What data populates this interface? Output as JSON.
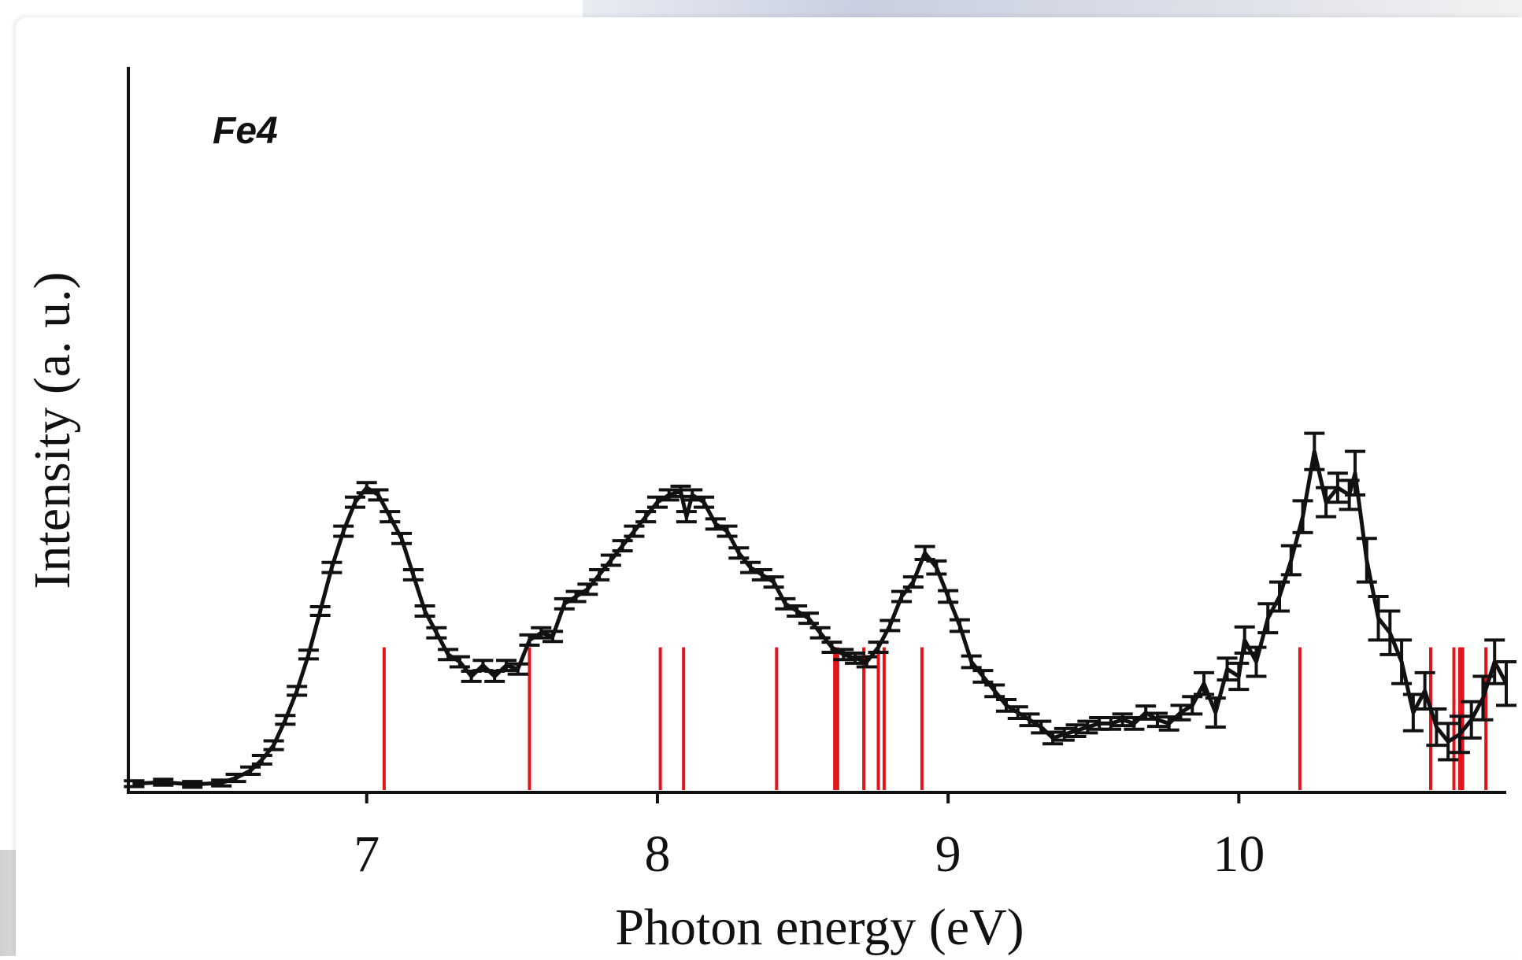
{
  "chart_data": {
    "type": "line",
    "title": "",
    "panel_label": "Fe4",
    "xlabel": "Photon energy (eV)",
    "ylabel": "Intensity (a. u.)",
    "xlim": [
      6.18,
      10.92
    ],
    "ylim": [
      0,
      1.0
    ],
    "x_ticks": [
      7,
      8,
      9,
      10
    ],
    "x_tick_labels": [
      "7",
      "8",
      "9",
      "10"
    ],
    "grid": false,
    "legend": "none",
    "colors": {
      "spectrum": "#111111",
      "transitions": "#e3131b"
    },
    "series": [
      {
        "values": [
          [
            6.2,
            0.012,
            0.004
          ],
          [
            6.3,
            0.014,
            0.004
          ],
          [
            6.4,
            0.011,
            0.004
          ],
          [
            6.5,
            0.013,
            0.004
          ],
          [
            6.55,
            0.02,
            0.005
          ],
          [
            6.6,
            0.03,
            0.005
          ],
          [
            6.64,
            0.045,
            0.006
          ],
          [
            6.68,
            0.065,
            0.006
          ],
          [
            6.72,
            0.1,
            0.006
          ],
          [
            6.76,
            0.14,
            0.006
          ],
          [
            6.8,
            0.19,
            0.006
          ],
          [
            6.84,
            0.25,
            0.006
          ],
          [
            6.88,
            0.31,
            0.007
          ],
          [
            6.92,
            0.36,
            0.007
          ],
          [
            6.96,
            0.4,
            0.007
          ],
          [
            7.0,
            0.42,
            0.007
          ],
          [
            7.04,
            0.41,
            0.007
          ],
          [
            7.08,
            0.38,
            0.007
          ],
          [
            7.12,
            0.35,
            0.007
          ],
          [
            7.16,
            0.3,
            0.007
          ],
          [
            7.2,
            0.25,
            0.007
          ],
          [
            7.24,
            0.22,
            0.007
          ],
          [
            7.28,
            0.19,
            0.007
          ],
          [
            7.32,
            0.18,
            0.007
          ],
          [
            7.36,
            0.16,
            0.007
          ],
          [
            7.4,
            0.175,
            0.007
          ],
          [
            7.44,
            0.16,
            0.007
          ],
          [
            7.48,
            0.175,
            0.007
          ],
          [
            7.52,
            0.17,
            0.007
          ],
          [
            7.56,
            0.21,
            0.007
          ],
          [
            7.6,
            0.22,
            0.007
          ],
          [
            7.64,
            0.215,
            0.007
          ],
          [
            7.68,
            0.26,
            0.007
          ],
          [
            7.72,
            0.27,
            0.007
          ],
          [
            7.76,
            0.28,
            0.007
          ],
          [
            7.8,
            0.3,
            0.007
          ],
          [
            7.84,
            0.32,
            0.007
          ],
          [
            7.88,
            0.34,
            0.007
          ],
          [
            7.92,
            0.36,
            0.007
          ],
          [
            7.96,
            0.38,
            0.007
          ],
          [
            8.0,
            0.4,
            0.007
          ],
          [
            8.04,
            0.41,
            0.007
          ],
          [
            8.08,
            0.415,
            0.007
          ],
          [
            8.1,
            0.38,
            0.007
          ],
          [
            8.12,
            0.41,
            0.007
          ],
          [
            8.16,
            0.4,
            0.007
          ],
          [
            8.2,
            0.37,
            0.007
          ],
          [
            8.24,
            0.36,
            0.007
          ],
          [
            8.28,
            0.33,
            0.007
          ],
          [
            8.32,
            0.31,
            0.007
          ],
          [
            8.36,
            0.3,
            0.007
          ],
          [
            8.4,
            0.29,
            0.007
          ],
          [
            8.44,
            0.26,
            0.007
          ],
          [
            8.48,
            0.25,
            0.007
          ],
          [
            8.52,
            0.24,
            0.007
          ],
          [
            8.56,
            0.22,
            0.007
          ],
          [
            8.6,
            0.2,
            0.007
          ],
          [
            8.64,
            0.19,
            0.007
          ],
          [
            8.68,
            0.185,
            0.007
          ],
          [
            8.72,
            0.18,
            0.007
          ],
          [
            8.76,
            0.2,
            0.007
          ],
          [
            8.8,
            0.23,
            0.007
          ],
          [
            8.84,
            0.27,
            0.007
          ],
          [
            8.88,
            0.29,
            0.007
          ],
          [
            8.92,
            0.33,
            0.009
          ],
          [
            8.96,
            0.31,
            0.009
          ],
          [
            9.0,
            0.27,
            0.008
          ],
          [
            9.04,
            0.23,
            0.008
          ],
          [
            9.08,
            0.18,
            0.008
          ],
          [
            9.12,
            0.16,
            0.008
          ],
          [
            9.16,
            0.14,
            0.008
          ],
          [
            9.2,
            0.12,
            0.008
          ],
          [
            9.24,
            0.11,
            0.008
          ],
          [
            9.28,
            0.1,
            0.008
          ],
          [
            9.32,
            0.09,
            0.008
          ],
          [
            9.36,
            0.075,
            0.008
          ],
          [
            9.4,
            0.08,
            0.008
          ],
          [
            9.44,
            0.085,
            0.008
          ],
          [
            9.48,
            0.09,
            0.008
          ],
          [
            9.52,
            0.095,
            0.008
          ],
          [
            9.56,
            0.095,
            0.008
          ],
          [
            9.6,
            0.1,
            0.008
          ],
          [
            9.64,
            0.095,
            0.008
          ],
          [
            9.68,
            0.11,
            0.009
          ],
          [
            9.72,
            0.1,
            0.009
          ],
          [
            9.76,
            0.095,
            0.009
          ],
          [
            9.8,
            0.11,
            0.01
          ],
          [
            9.84,
            0.12,
            0.012
          ],
          [
            9.88,
            0.15,
            0.015
          ],
          [
            9.92,
            0.11,
            0.02
          ],
          [
            9.96,
            0.17,
            0.015
          ],
          [
            10.0,
            0.16,
            0.018
          ],
          [
            10.02,
            0.21,
            0.018
          ],
          [
            10.06,
            0.18,
            0.02
          ],
          [
            10.1,
            0.24,
            0.02
          ],
          [
            10.14,
            0.27,
            0.02
          ],
          [
            10.18,
            0.32,
            0.02
          ],
          [
            10.22,
            0.38,
            0.022
          ],
          [
            10.26,
            0.47,
            0.025
          ],
          [
            10.3,
            0.4,
            0.02
          ],
          [
            10.34,
            0.42,
            0.02
          ],
          [
            10.38,
            0.41,
            0.02
          ],
          [
            10.4,
            0.44,
            0.03
          ],
          [
            10.44,
            0.32,
            0.03
          ],
          [
            10.48,
            0.24,
            0.03
          ],
          [
            10.52,
            0.22,
            0.03
          ],
          [
            10.56,
            0.18,
            0.03
          ],
          [
            10.6,
            0.11,
            0.025
          ],
          [
            10.64,
            0.14,
            0.025
          ],
          [
            10.68,
            0.09,
            0.025
          ],
          [
            10.72,
            0.07,
            0.025
          ],
          [
            10.76,
            0.08,
            0.025
          ],
          [
            10.8,
            0.1,
            0.025
          ],
          [
            10.84,
            0.13,
            0.03
          ],
          [
            10.88,
            0.18,
            0.03
          ],
          [
            10.92,
            0.15,
            0.03
          ]
        ]
      }
    ],
    "transition_lines": [
      7.06,
      7.56,
      8.01,
      8.09,
      8.41,
      8.61,
      8.62,
      8.71,
      8.76,
      8.78,
      8.91,
      10.21,
      10.66,
      10.74,
      10.76,
      10.77,
      10.85
    ],
    "transition_line_height": 0.2
  }
}
